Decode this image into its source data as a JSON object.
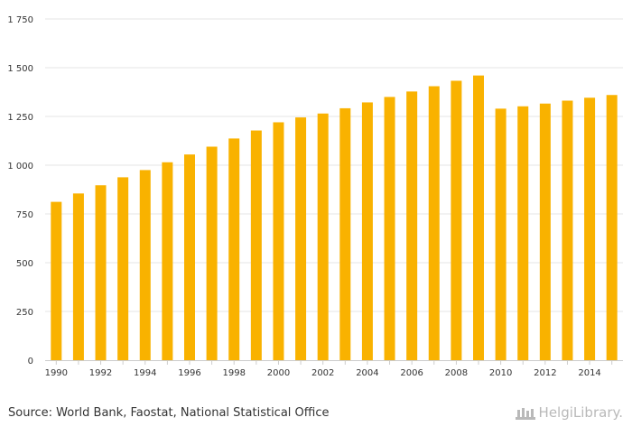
{
  "source_text": "Source: World Bank, Faostat, National Statistical Office",
  "brand_text": "HelgiLibrary.",
  "colors": {
    "bar": "#F9B200",
    "grid": "#E6E6E6",
    "axis": "#CCCCCC",
    "text": "#333333",
    "brand": "#B9B9B9"
  },
  "chart_data": {
    "type": "bar",
    "title": "",
    "xlabel": "",
    "ylabel": "",
    "ylim": [
      0,
      1750
    ],
    "yticks": [
      {
        "value": 0,
        "label": "0"
      },
      {
        "value": 250,
        "label": "250"
      },
      {
        "value": 500,
        "label": "500"
      },
      {
        "value": 750,
        "label": "750"
      },
      {
        "value": 1000,
        "label": "1 000"
      },
      {
        "value": 1250,
        "label": "1 250"
      },
      {
        "value": 1500,
        "label": "1 500"
      },
      {
        "value": 1750,
        "label": "1 750"
      }
    ],
    "xtick_labels": [
      "1990",
      "1992",
      "1994",
      "1996",
      "1998",
      "2000",
      "2002",
      "2004",
      "2006",
      "2008",
      "2010",
      "2012",
      "2014"
    ],
    "categories": [
      "1990",
      "1991",
      "1992",
      "1993",
      "1994",
      "1995",
      "1996",
      "1997",
      "1998",
      "1999",
      "2000",
      "2001",
      "2002",
      "2003",
      "2004",
      "2005",
      "2006",
      "2007",
      "2008",
      "2009",
      "2010",
      "2011",
      "2012",
      "2013",
      "2014",
      "2015"
    ],
    "values": [
      812,
      855,
      897,
      938,
      975,
      1015,
      1055,
      1095,
      1137,
      1178,
      1220,
      1245,
      1265,
      1292,
      1322,
      1350,
      1378,
      1405,
      1433,
      1460,
      1290,
      1302,
      1316,
      1331,
      1346,
      1360
    ],
    "grid": true,
    "legend": "none"
  }
}
